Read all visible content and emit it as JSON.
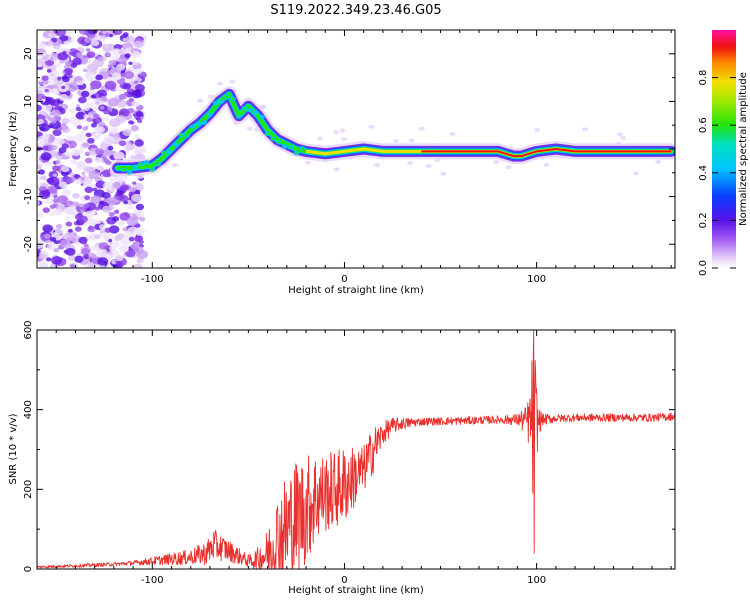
{
  "title": "S119.2022.349.23.46.G05",
  "chart_data": [
    {
      "type": "heatmap",
      "xlabel": "Height of straight line (km)",
      "ylabel": "Frequency (Hz)",
      "xlim": [
        -160,
        172
      ],
      "ylim": [
        -25,
        25
      ],
      "xticks": [
        -100,
        0,
        100
      ],
      "yticks": [
        -20,
        -10,
        0,
        10,
        20
      ],
      "colorbar": {
        "label": "Normalized spectral amplitude",
        "range": [
          0,
          1
        ],
        "ticks": [
          "0.0",
          "0.2",
          "0.4",
          "0.6",
          "0.8"
        ],
        "colormap": "white-violet-blue-cyan-green-yellow-red-magenta"
      },
      "ridge": {
        "x": [
          -118,
          -110,
          -100,
          -95,
          -90,
          -85,
          -80,
          -75,
          -70,
          -65,
          -60,
          -55,
          -50,
          -45,
          -40,
          -35,
          -30,
          -25,
          -20,
          -10,
          0,
          10,
          20,
          40,
          60,
          80,
          88,
          92,
          100,
          110,
          120,
          140,
          160,
          170
        ],
        "y": [
          -4,
          -4,
          -3.5,
          -2,
          0,
          2,
          4,
          5.5,
          7.5,
          10,
          11.5,
          7,
          9,
          7,
          4,
          2,
          1,
          0,
          -0.5,
          -1,
          -0.5,
          0,
          -0.5,
          -0.5,
          -0.5,
          -0.5,
          -1.5,
          -1.5,
          -0.5,
          0,
          -0.5,
          -0.5,
          -0.5,
          -0.5
        ]
      },
      "noise_region_x": [
        -160,
        -105
      ]
    },
    {
      "type": "line",
      "xlabel": "Height of straight line (km)",
      "ylabel": "SNR (10 * v/v)",
      "xlim": [
        -160,
        172
      ],
      "ylim": [
        0,
        600
      ],
      "xticks": [
        -100,
        0,
        100
      ],
      "yticks": [
        0,
        200,
        400,
        600
      ],
      "color": "#e8302e",
      "envelope": {
        "x": [
          -160,
          -140,
          -120,
          -110,
          -100,
          -90,
          -80,
          -72,
          -68,
          -62,
          -58,
          -50,
          -45,
          -40,
          -35,
          -30,
          -25,
          -20,
          -15,
          -10,
          -5,
          0,
          5,
          10,
          15,
          20,
          25,
          30,
          40,
          60,
          80,
          90,
          95,
          97,
          98,
          99,
          100,
          101,
          103,
          110,
          120,
          140,
          160,
          172
        ],
        "base": [
          5,
          8,
          12,
          15,
          20,
          25,
          30,
          40,
          60,
          50,
          40,
          20,
          25,
          40,
          80,
          100,
          130,
          150,
          180,
          190,
          200,
          210,
          230,
          250,
          300,
          340,
          360,
          365,
          370,
          372,
          375,
          375,
          372,
          370,
          370,
          370,
          370,
          370,
          375,
          378,
          380,
          380,
          380,
          383
        ],
        "amp": [
          3,
          4,
          5,
          6,
          10,
          15,
          20,
          30,
          40,
          30,
          25,
          15,
          30,
          60,
          110,
          150,
          150,
          140,
          120,
          100,
          100,
          100,
          80,
          60,
          60,
          30,
          20,
          15,
          10,
          10,
          10,
          15,
          40,
          100,
          220,
          200,
          100,
          40,
          15,
          10,
          10,
          10,
          10,
          10
        ]
      },
      "peak": {
        "x": 98.5,
        "y": 600
      },
      "dip": {
        "x": 98.5,
        "y": 40
      }
    }
  ]
}
